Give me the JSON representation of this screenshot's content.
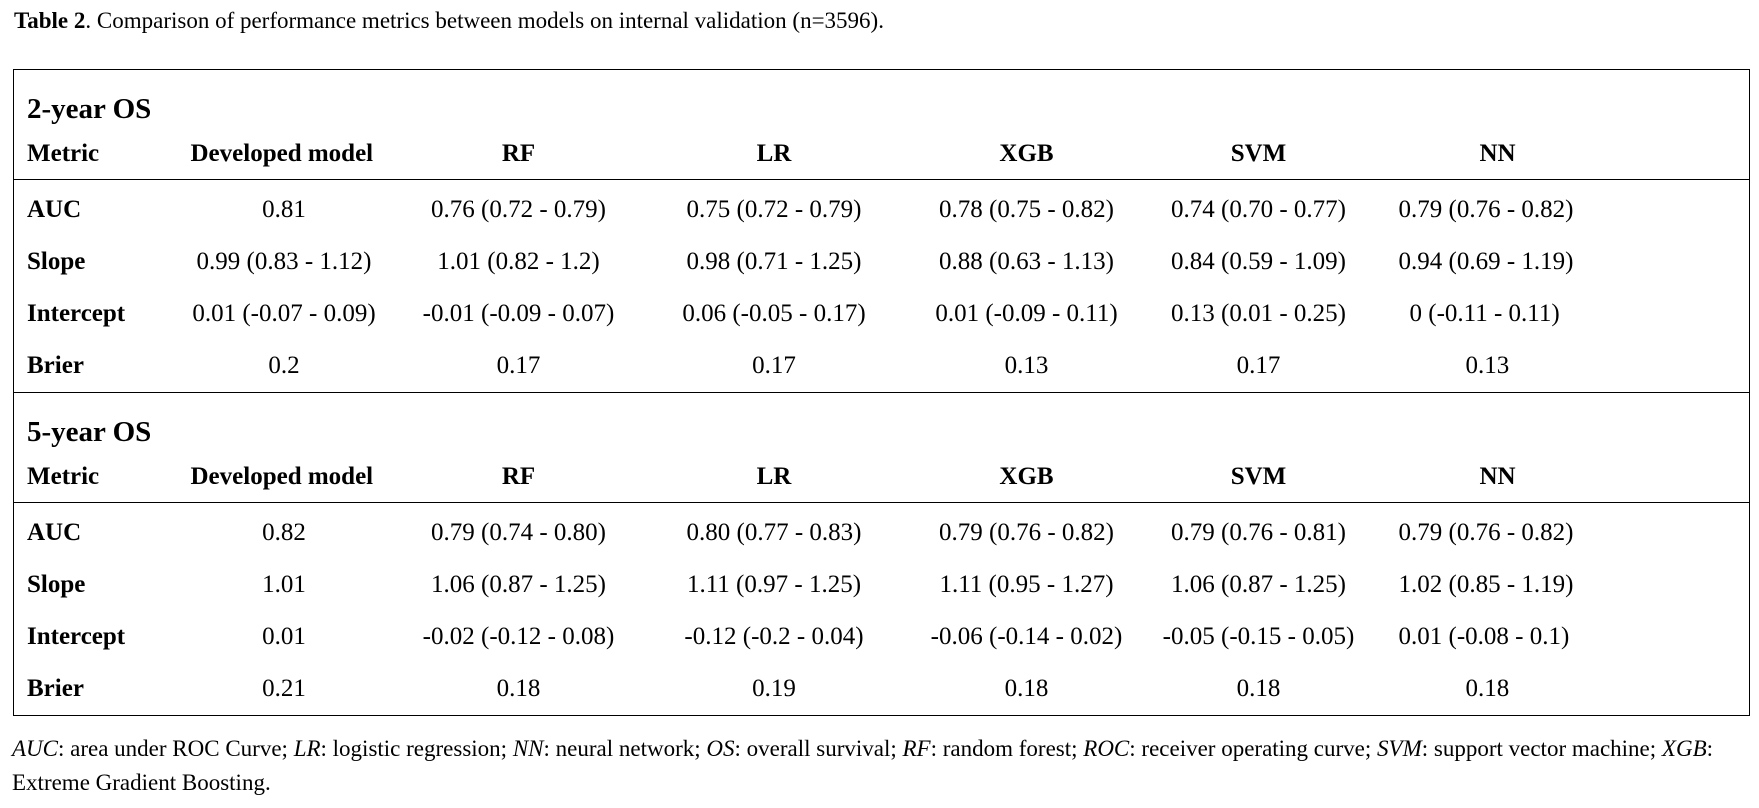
{
  "caption": {
    "label": "Table 2",
    "text": ". Comparison of performance metrics between models on internal validation (n=3596)."
  },
  "table": {
    "sections": [
      {
        "title": "2-year OS",
        "headers": [
          "Metric",
          "Developed model",
          "RF",
          "LR",
          "XGB",
          "SVM",
          "NN"
        ],
        "rows": [
          [
            "AUC",
            "0.81",
            "0.76 (0.72 - 0.79)",
            "0.75 (0.72 - 0.79)",
            "0.78 (0.75 - 0.82)",
            "0.74 (0.70 - 0.77)",
            "0.79 (0.76 - 0.82)"
          ],
          [
            "Slope",
            "0.99 (0.83 - 1.12)",
            "1.01 (0.82 - 1.2)",
            "0.98 (0.71 - 1.25)",
            "0.88 (0.63 - 1.13)",
            "0.84 (0.59 - 1.09)",
            "0.94 (0.69 - 1.19)"
          ],
          [
            "Intercept",
            "0.01 (-0.07 - 0.09)",
            "-0.01 (-0.09 - 0.07)",
            "0.06 (-0.05 - 0.17)",
            "0.01 (-0.09 - 0.11)",
            "0.13 (0.01 - 0.25)",
            "0 (-0.11 - 0.11)"
          ],
          [
            "Brier",
            "0.2",
            "0.17",
            "0.17",
            "0.13",
            "0.17",
            "0.13"
          ]
        ]
      },
      {
        "title": "5-year OS",
        "headers": [
          "Metric",
          "Developed model",
          "RF",
          "LR",
          "XGB",
          "SVM",
          "NN"
        ],
        "rows": [
          [
            "AUC",
            "0.82",
            "0.79 (0.74 - 0.80)",
            "0.80 (0.77 - 0.83)",
            "0.79 (0.76 - 0.82)",
            "0.79 (0.76 - 0.81)",
            "0.79 (0.76 - 0.82)"
          ],
          [
            "Slope",
            "1.01",
            "1.06 (0.87 - 1.25)",
            "1.11 (0.97 - 1.25)",
            "1.11 (0.95 - 1.27)",
            "1.06 (0.87 - 1.25)",
            "1.02 (0.85 - 1.19)"
          ],
          [
            "Intercept",
            "0.01",
            "-0.02 (-0.12 - 0.08)",
            "-0.12 (-0.2 - 0.04)",
            "-0.06 (-0.14 - 0.02)",
            "-0.05 (-0.15 - 0.05)",
            "0.01 (-0.08 - 0.1)"
          ],
          [
            "Brier",
            "0.21",
            "0.18",
            "0.19",
            "0.18",
            "0.18",
            "0.18"
          ]
        ]
      }
    ]
  },
  "footnote": {
    "entries": [
      {
        "abbr": "AUC",
        "text": ": area under ROC Curve; "
      },
      {
        "abbr": "LR",
        "text": ": logistic regression; "
      },
      {
        "abbr": "NN",
        "text": ": neural network; "
      },
      {
        "abbr": "OS",
        "text": ": overall survival; "
      },
      {
        "abbr": "RF",
        "text": ": random forest; "
      },
      {
        "abbr": "ROC",
        "text": ": receiver operating curve; "
      },
      {
        "abbr": "SVM",
        "text": ": support vector machine; "
      },
      {
        "abbr": "XGB",
        "text": ": Extreme Gradient Boosting."
      }
    ]
  }
}
